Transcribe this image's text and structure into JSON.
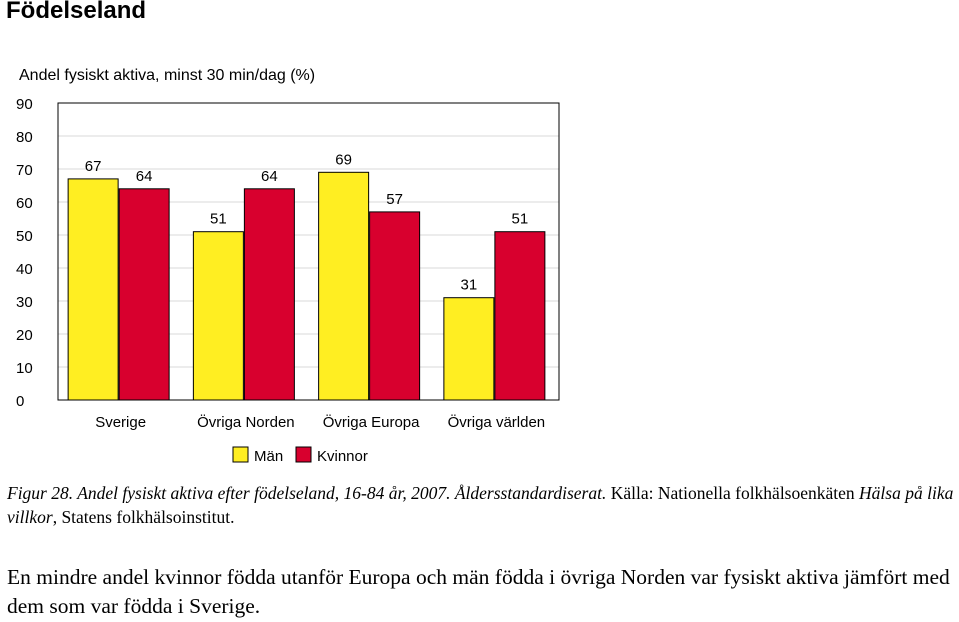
{
  "heading": "Födelseland",
  "chart_data": {
    "type": "bar",
    "title": "Andel fysiskt aktiva, minst 30 min/dag (%)",
    "xlabel": "",
    "ylabel": "",
    "ylim": [
      0,
      90
    ],
    "yticks": [
      0,
      10,
      20,
      30,
      40,
      50,
      60,
      70,
      80,
      90
    ],
    "grid": true,
    "categories": [
      "Sverige",
      "Övriga Norden",
      "Övriga Europa",
      "Övriga världen"
    ],
    "series": [
      {
        "name": "Män",
        "values": [
          67,
          51,
          69,
          31
        ],
        "color": "#FFEE22"
      },
      {
        "name": "Kvinnor",
        "values": [
          64,
          64,
          57,
          51
        ],
        "color": "#D8002E"
      }
    ],
    "legend": "bottom-center"
  },
  "caption": {
    "fig_label": "Figur 28.",
    "fig_text": "Andel fysiskt aktiva efter födelseland, 16-84 år, 2007. Åldersstandardiserat.",
    "source_prefix": "Källa: Nationella folkhälsoenkäten",
    "source_title": "Hälsa på lika villkor",
    "source_suffix": ", Statens folkhälsoinstitut."
  },
  "body_text": "En mindre andel kvinnor födda utanför Europa och män födda i övriga Norden var fysiskt aktiva jämfört med dem som var födda i Sverige."
}
